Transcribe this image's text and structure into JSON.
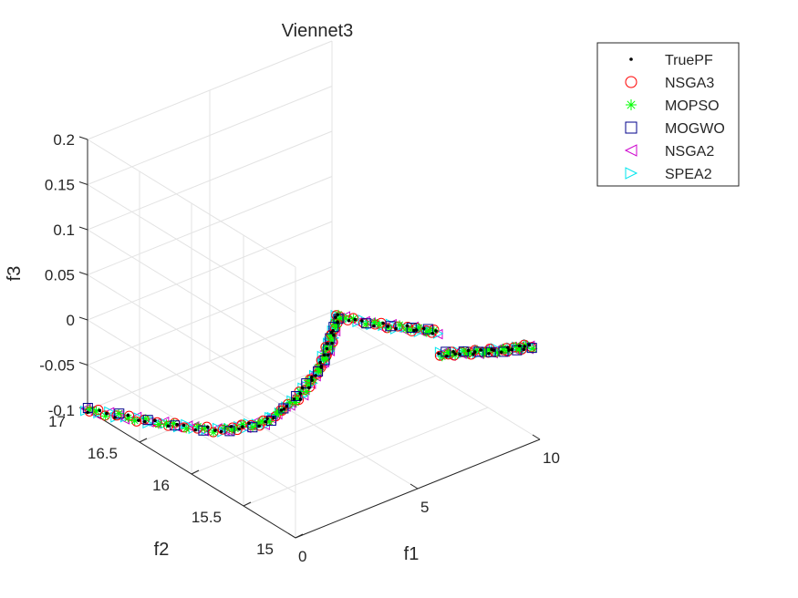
{
  "chart_data": {
    "type": "scatter",
    "projection": "3d",
    "title": "Viennet3",
    "xlabel": "f1",
    "ylabel": "f2",
    "zlabel": "f3",
    "xlim": [
      0,
      10
    ],
    "ylim": [
      15,
      17
    ],
    "zlim": [
      -0.1,
      0.2
    ],
    "x_ticks": [
      "0",
      "5",
      "10"
    ],
    "y_ticks": [
      "15",
      "15.5",
      "16",
      "16.5",
      "17"
    ],
    "z_ticks": [
      "-0.1",
      "-0.05",
      "0",
      "0.05",
      "0.1",
      "0.15",
      "0.2"
    ],
    "grid": true,
    "legend_position": "top-right",
    "series": [
      {
        "name": "TruePF",
        "marker": "point",
        "color": "#000000"
      },
      {
        "name": "NSGA3",
        "marker": "circle",
        "color": "#ff0000"
      },
      {
        "name": "MOPSO",
        "marker": "asterisk",
        "color": "#00ff00"
      },
      {
        "name": "MOGWO",
        "marker": "square",
        "color": "#00008b"
      },
      {
        "name": "NSGA2",
        "marker": "triangle-left",
        "color": "#cc00cc"
      },
      {
        "name": "SPEA2",
        "marker": "triangle-right",
        "color": "#00e5ee"
      }
    ],
    "front_segments": [
      {
        "points": [
          [
            0.0,
            17.0,
            -0.1
          ],
          [
            1.0,
            16.6,
            -0.096
          ],
          [
            2.0,
            16.2,
            -0.088
          ],
          [
            2.8,
            15.95,
            -0.07
          ],
          [
            3.5,
            15.8,
            -0.04
          ],
          [
            4.0,
            15.72,
            -0.01
          ],
          [
            4.3,
            15.68,
            0.02
          ],
          [
            4.5,
            15.65,
            0.05
          ]
        ]
      },
      {
        "points": [
          [
            4.5,
            15.65,
            0.05
          ],
          [
            5.2,
            15.45,
            0.048
          ],
          [
            6.0,
            15.3,
            0.045
          ],
          [
            6.6,
            15.2,
            0.042
          ]
        ]
      },
      {
        "points": [
          [
            6.8,
            15.2,
            0.015
          ],
          [
            7.8,
            15.12,
            0.012
          ],
          [
            8.8,
            15.06,
            0.008
          ],
          [
            9.7,
            15.02,
            0.005
          ]
        ]
      }
    ]
  }
}
